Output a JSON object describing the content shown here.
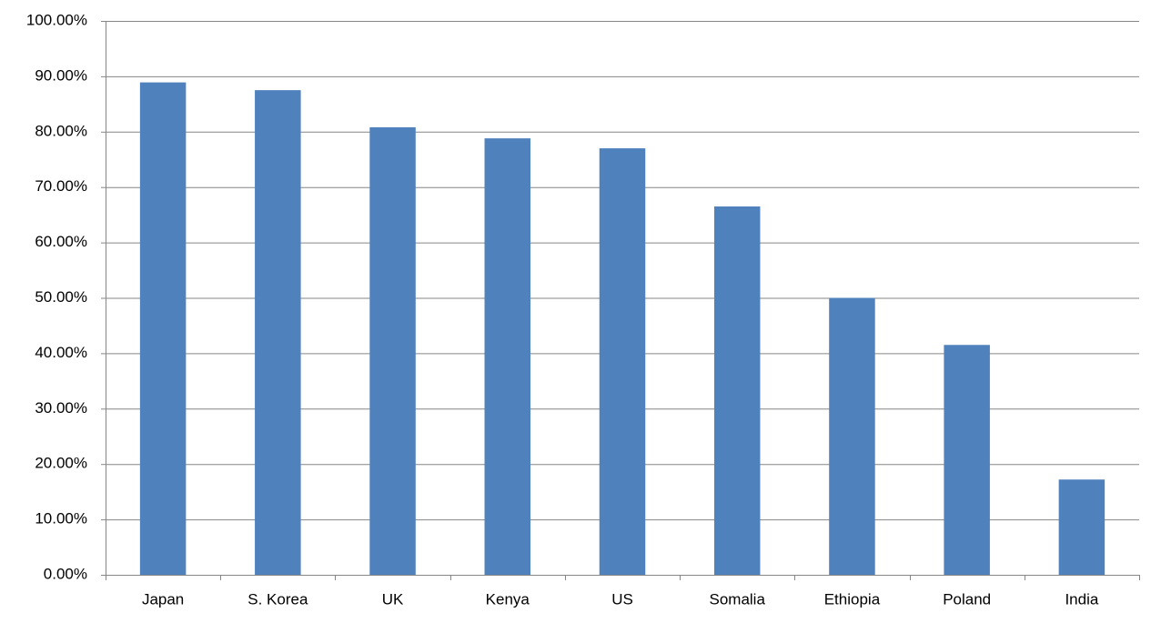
{
  "chart_data": {
    "type": "bar",
    "categories": [
      "Japan",
      "S. Korea",
      "UK",
      "Kenya",
      "US",
      "Somalia",
      "Ethiopia",
      "Poland",
      "India"
    ],
    "values": [
      88.9,
      87.5,
      80.8,
      78.8,
      77.0,
      66.5,
      50.0,
      41.5,
      17.2
    ],
    "color": "#4f81bd",
    "ylim": [
      0,
      100
    ],
    "yticks": [
      {
        "value": 0,
        "label": "0.00%"
      },
      {
        "value": 10,
        "label": "10.00%"
      },
      {
        "value": 20,
        "label": "20.00%"
      },
      {
        "value": 30,
        "label": "30.00%"
      },
      {
        "value": 40,
        "label": "40.00%"
      },
      {
        "value": 50,
        "label": "50.00%"
      },
      {
        "value": 60,
        "label": "60.00%"
      },
      {
        "value": 70,
        "label": "70.00%"
      },
      {
        "value": 80,
        "label": "80.00%"
      },
      {
        "value": 90,
        "label": "90.00%"
      },
      {
        "value": 100,
        "label": "100.00%"
      }
    ],
    "grid": true
  }
}
